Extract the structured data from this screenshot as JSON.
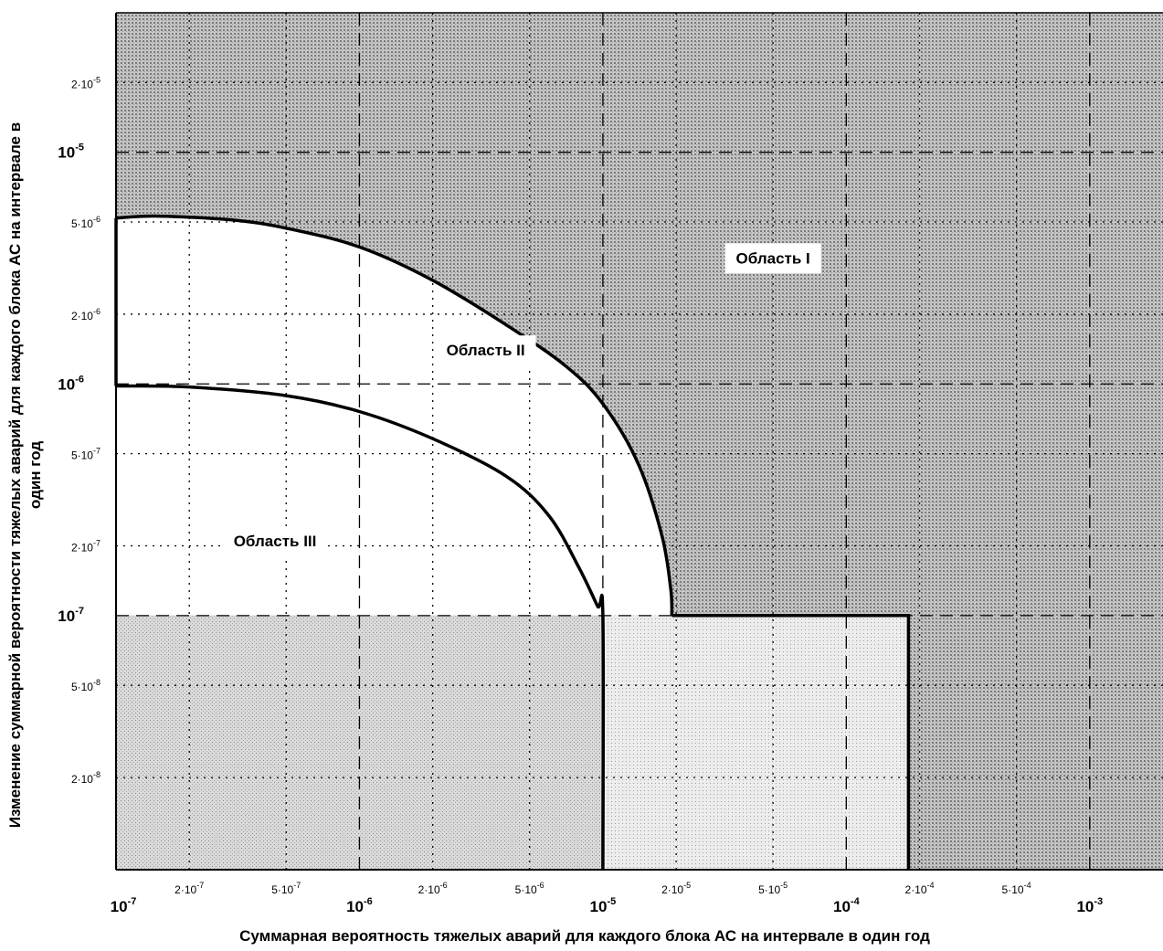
{
  "chart_data": {
    "type": "area",
    "xscale": "log",
    "yscale": "log",
    "xlim": [
      1e-07,
      0.002
    ],
    "ylim": [
      8e-09,
      4e-05
    ],
    "xlabel": "Суммарная вероятность тяжелых аварий для каждого блока АС на интервале в один год",
    "ylabel": "Изменение суммарной вероятности тяжелых аварий для каждого блока АС на интервале в один год",
    "x_ticks": [
      {
        "value": 1e-07,
        "mantissa": "10",
        "exp": "-7",
        "major": true
      },
      {
        "value": 2e-07,
        "mantissa": "2·10",
        "exp": "-7",
        "major": false
      },
      {
        "value": 5e-07,
        "mantissa": "5·10",
        "exp": "-7",
        "major": false
      },
      {
        "value": 1e-06,
        "mantissa": "10",
        "exp": "-6",
        "major": true
      },
      {
        "value": 2e-06,
        "mantissa": "2·10",
        "exp": "-6",
        "major": false
      },
      {
        "value": 5e-06,
        "mantissa": "5·10",
        "exp": "-6",
        "major": false
      },
      {
        "value": 1e-05,
        "mantissa": "10",
        "exp": "-5",
        "major": true
      },
      {
        "value": 2e-05,
        "mantissa": "2·10",
        "exp": "-5",
        "major": false
      },
      {
        "value": 5e-05,
        "mantissa": "5·10",
        "exp": "-5",
        "major": false
      },
      {
        "value": 0.0001,
        "mantissa": "10",
        "exp": "-4",
        "major": true
      },
      {
        "value": 0.0002,
        "mantissa": "2·10",
        "exp": "-4",
        "major": false
      },
      {
        "value": 0.0005,
        "mantissa": "5·10",
        "exp": "-4",
        "major": false
      },
      {
        "value": 0.001,
        "mantissa": "10",
        "exp": "-3",
        "major": true
      }
    ],
    "y_ticks": [
      {
        "value": 2e-05,
        "mantissa": "2·10",
        "exp": "-5",
        "major": false
      },
      {
        "value": 1e-05,
        "mantissa": "10",
        "exp": "-5",
        "major": true
      },
      {
        "value": 5e-06,
        "mantissa": "5·10",
        "exp": "-6",
        "major": false
      },
      {
        "value": 2e-06,
        "mantissa": "2·10",
        "exp": "-6",
        "major": false
      },
      {
        "value": 1e-06,
        "mantissa": "10",
        "exp": "-6",
        "major": true
      },
      {
        "value": 5e-07,
        "mantissa": "5·10",
        "exp": "-7",
        "major": false
      },
      {
        "value": 2e-07,
        "mantissa": "2·10",
        "exp": "-7",
        "major": false
      },
      {
        "value": 1e-07,
        "mantissa": "10",
        "exp": "-7",
        "major": true
      },
      {
        "value": 5e-08,
        "mantissa": "5·10",
        "exp": "-8",
        "major": false
      },
      {
        "value": 2e-08,
        "mantissa": "2·10",
        "exp": "-8",
        "major": false
      }
    ],
    "regions": [
      {
        "name": "Область I",
        "label_at": [
          5e-05,
          3.5e-06
        ]
      },
      {
        "name": "Область II",
        "label_at": [
          3.3e-06,
          1.4e-06
        ]
      },
      {
        "name": "Область III",
        "label_at": [
          4.5e-07,
          2.1e-07
        ]
      }
    ],
    "boundaries": {
      "outer_curve": [
        [
          1e-07,
          5.2e-06
        ],
        [
          1.5e-07,
          5.3e-06
        ],
        [
          3e-07,
          5.1e-06
        ],
        [
          5e-07,
          4.7e-06
        ],
        [
          1e-06,
          3.9e-06
        ],
        [
          2e-06,
          2.8e-06
        ],
        [
          4e-06,
          1.8e-06
        ],
        [
          7e-06,
          1.2e-06
        ],
        [
          1e-05,
          8.2e-07
        ],
        [
          1.4e-05,
          4.5e-07
        ],
        [
          1.75e-05,
          2.2e-07
        ],
        [
          1.9e-05,
          1.3e-07
        ],
        [
          1.92e-05,
          1e-07
        ]
      ],
      "inner_curve": [
        [
          1e-07,
          9.8e-07
        ],
        [
          2e-07,
          9.7e-07
        ],
        [
          5e-07,
          8.9e-07
        ],
        [
          1e-06,
          7.6e-07
        ],
        [
          2e-06,
          5.8e-07
        ],
        [
          4e-06,
          4e-07
        ],
        [
          6e-06,
          2.7e-07
        ],
        [
          8e-06,
          1.6e-07
        ],
        [
          9.5e-06,
          1.1e-07
        ],
        [
          1e-05,
          1e-07
        ],
        [
          1e-05,
          8e-09
        ]
      ],
      "step_right": [
        [
          1.92e-05,
          1e-07
        ],
        [
          0.00018,
          1e-07
        ],
        [
          0.00018,
          8e-09
        ]
      ]
    }
  }
}
